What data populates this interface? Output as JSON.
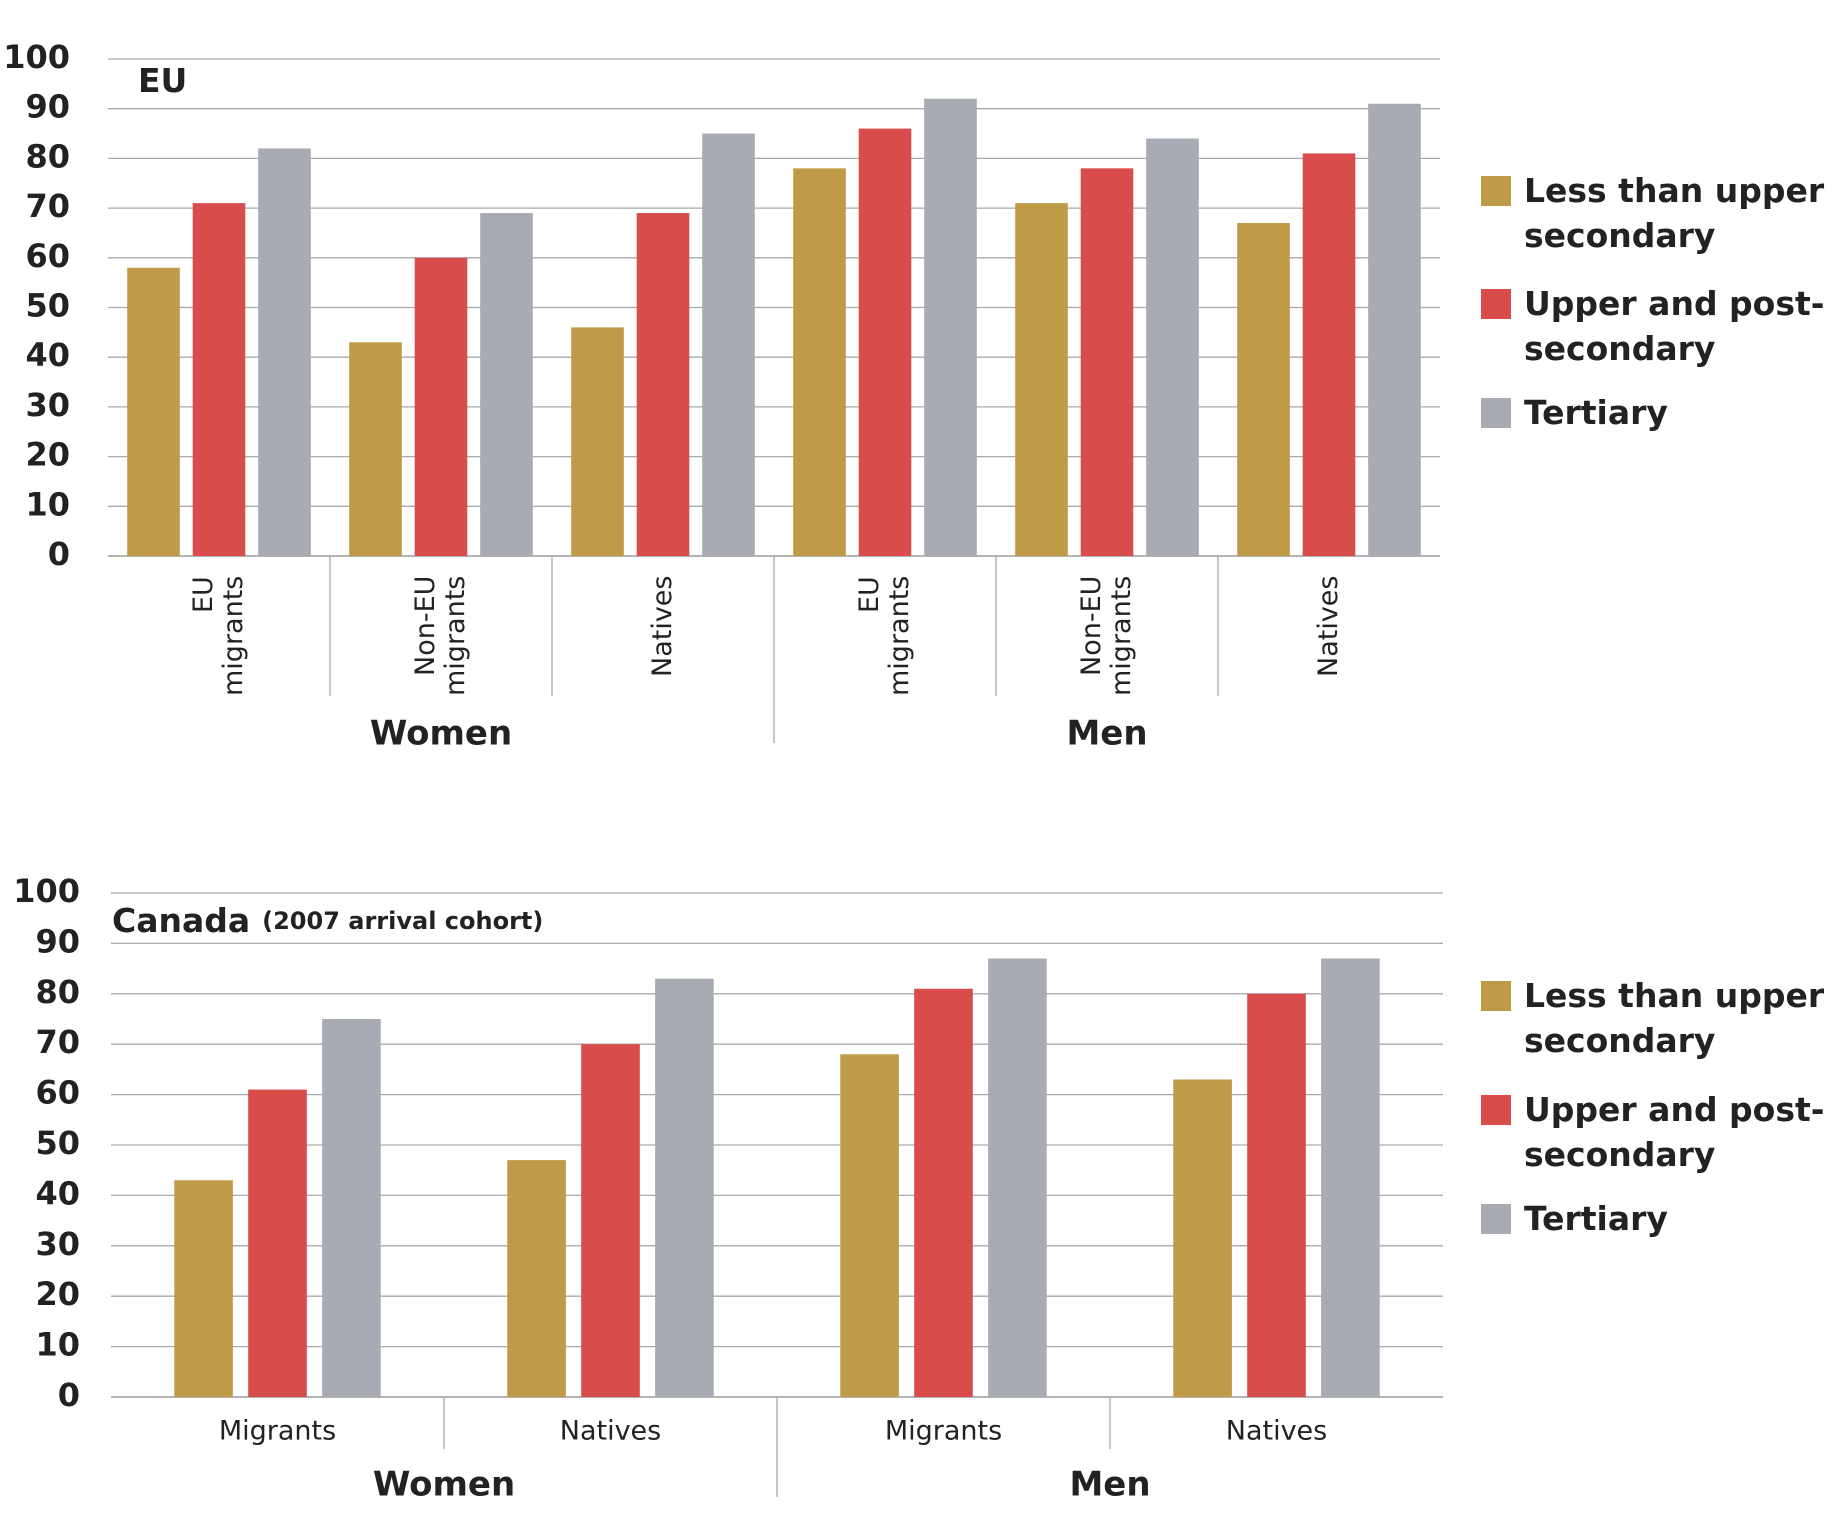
{
  "chart_data": [
    {
      "type": "bar",
      "title": "EU",
      "groups": [
        "Women",
        "Men"
      ],
      "categories": [
        "EU migrants",
        "Non-EU migrants",
        "Natives",
        "EU migrants",
        "Non-EU migrants",
        "Natives"
      ],
      "series": [
        {
          "name": "Less than upper secondary",
          "color": "#bf9b47",
          "values": [
            58,
            43,
            46,
            78,
            71,
            67
          ]
        },
        {
          "name": "Upper and post-secondary",
          "color": "#d94c4c",
          "values": [
            71,
            60,
            69,
            86,
            78,
            81
          ]
        },
        {
          "name": "Tertiary",
          "color": "#a8abb3",
          "values": [
            82,
            69,
            85,
            92,
            84,
            91
          ]
        }
      ],
      "ylim": [
        0,
        100
      ],
      "yticks": [
        0,
        10,
        20,
        30,
        40,
        50,
        60,
        70,
        80,
        90,
        100
      ],
      "grid": true
    },
    {
      "type": "bar",
      "title": "Canada",
      "subtitle": "(2007 arrival cohort)",
      "groups": [
        "Women",
        "Men"
      ],
      "categories": [
        "Migrants",
        "Natives",
        "Migrants",
        "Natives"
      ],
      "series": [
        {
          "name": "Less than upper secondary",
          "color": "#bf9b47",
          "values": [
            43,
            47,
            68,
            63
          ]
        },
        {
          "name": "Upper and post-secondary",
          "color": "#d94c4c",
          "values": [
            61,
            70,
            81,
            80
          ]
        },
        {
          "name": "Tertiary",
          "color": "#a8abb3",
          "values": [
            75,
            83,
            87,
            87
          ]
        }
      ],
      "ylim": [
        0,
        100
      ],
      "yticks": [
        0,
        10,
        20,
        30,
        40,
        50,
        60,
        70,
        80,
        90,
        100
      ],
      "grid": true
    }
  ]
}
